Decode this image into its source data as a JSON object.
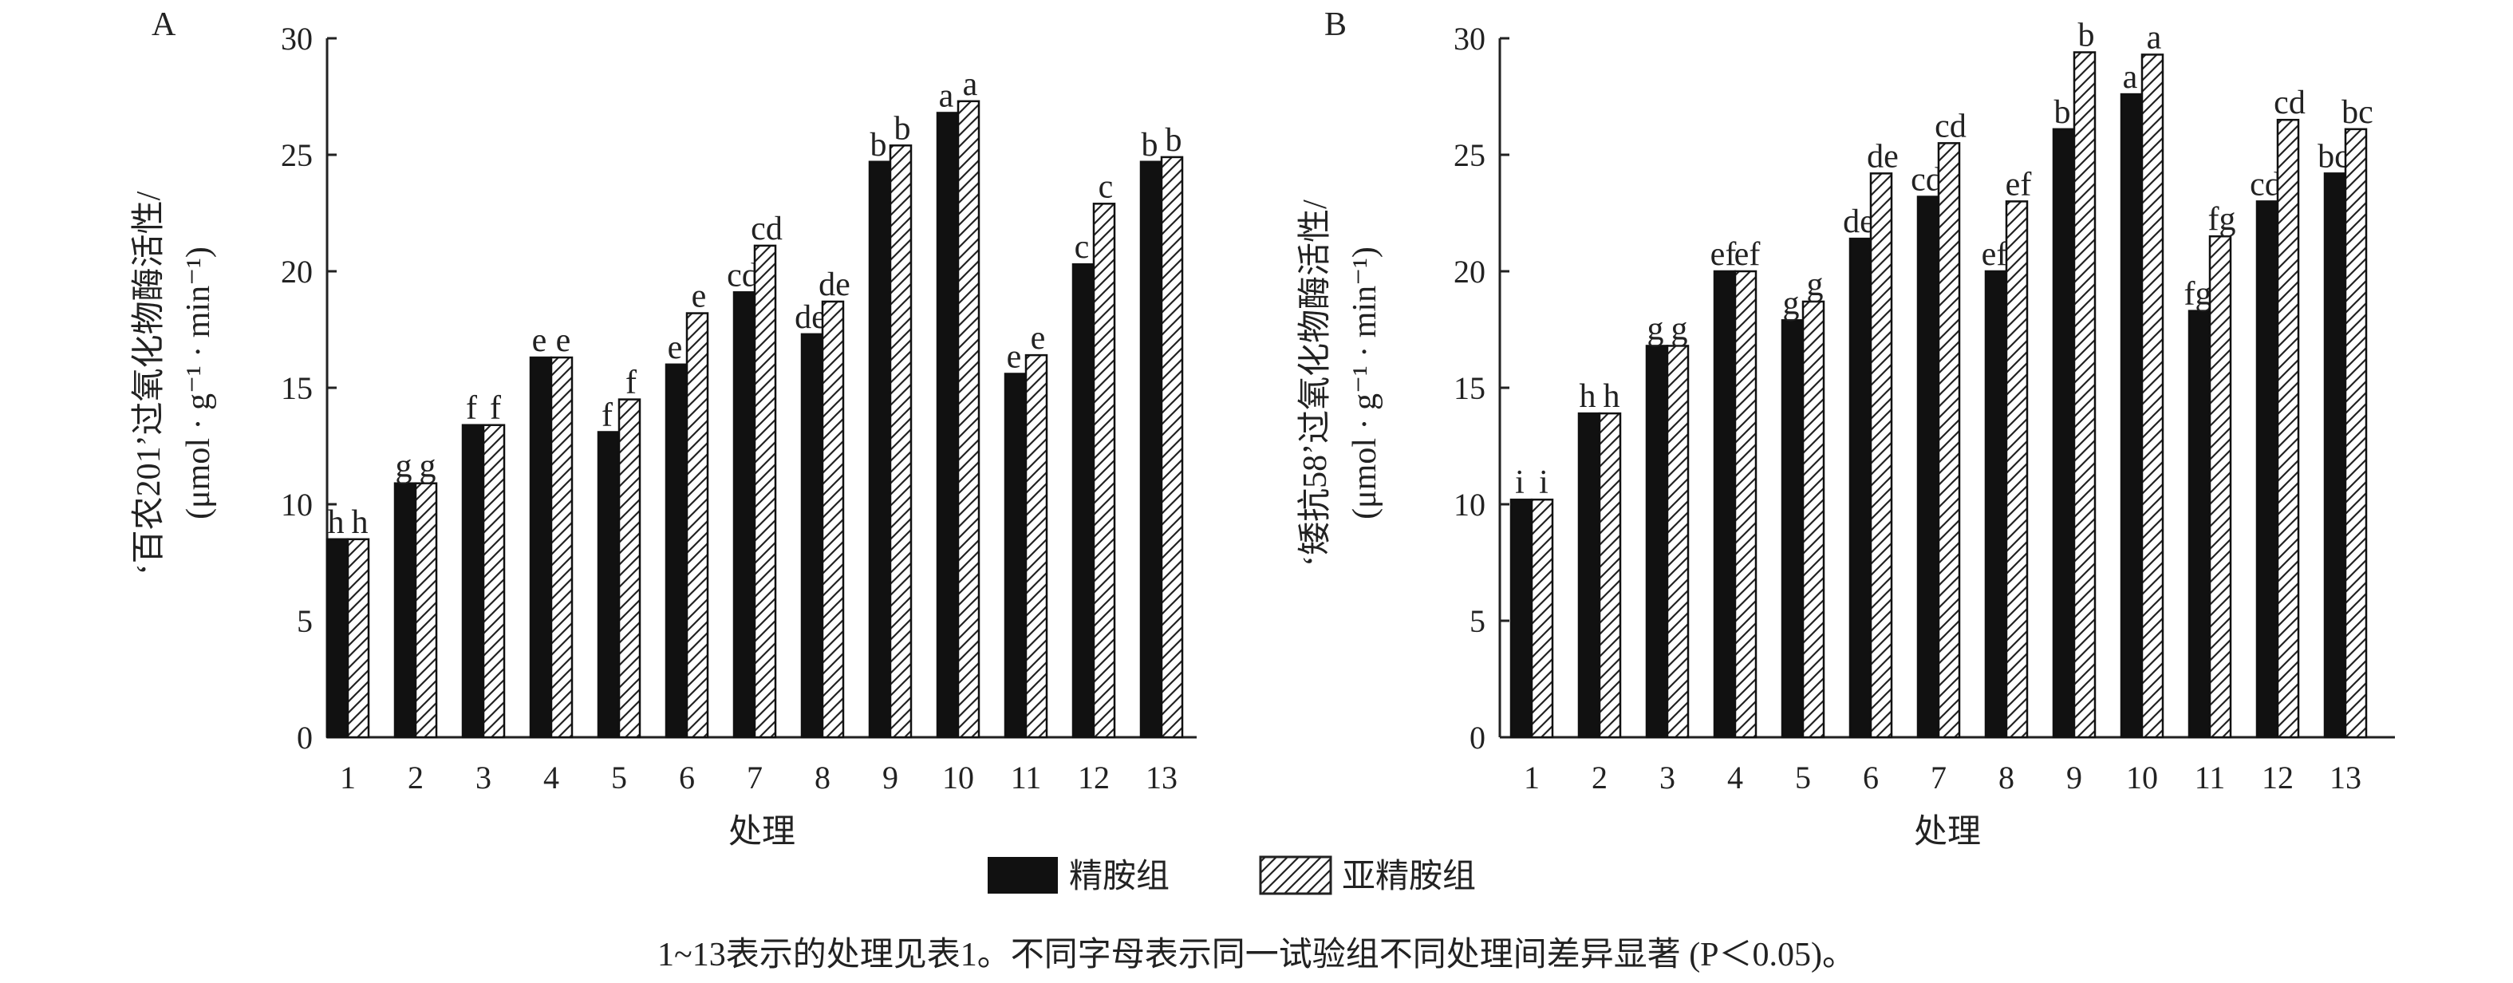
{
  "legend": {
    "solid": "精胺组",
    "hatched": "亚精胺组"
  },
  "caption": "1~13表示的处理见表1。不同字母表示同一试验组不同处理间差异显著 (P＜0.05)。",
  "colors": {
    "solid": "#111111",
    "axis": "#222222"
  },
  "chart_data": [
    {
      "type": "bar",
      "panel": "A",
      "xlabel": "处理",
      "ylabel": "‘百农201’过氧化物酶活性/",
      "ylabel_unit": "(μmol · g⁻¹ · min⁻¹)",
      "ylim": [
        0,
        30
      ],
      "yticks": [
        "0",
        "5",
        "10",
        "15",
        "20",
        "25",
        "30"
      ],
      "categories": [
        "1",
        "2",
        "3",
        "4",
        "5",
        "6",
        "7",
        "8",
        "9",
        "10",
        "11",
        "12",
        "13"
      ],
      "series": [
        {
          "name": "精胺组",
          "values": [
            8.5,
            10.9,
            13.4,
            16.3,
            13.1,
            16.0,
            19.1,
            17.3,
            24.7,
            26.8,
            15.6,
            20.3,
            24.7
          ],
          "letters": [
            "h",
            "g",
            "f",
            "e",
            "f",
            "e",
            "cd",
            "de",
            "b",
            "a",
            "e",
            "c",
            "b"
          ]
        },
        {
          "name": "亚精胺组",
          "values": [
            8.5,
            10.9,
            13.4,
            16.3,
            14.5,
            18.2,
            21.1,
            18.7,
            25.4,
            27.3,
            16.4,
            22.9,
            24.9
          ],
          "letters": [
            "h",
            "g",
            "f",
            "e",
            "f",
            "e",
            "cd",
            "de",
            "b",
            "a",
            "e",
            "c",
            "b"
          ]
        }
      ]
    },
    {
      "type": "bar",
      "panel": "B",
      "xlabel": "处理",
      "ylabel": "‘矮抗58’过氧化物酶活性/",
      "ylabel_unit": "(μmol · g⁻¹ · min⁻¹)",
      "ylim": [
        0,
        30
      ],
      "yticks": [
        "0",
        "5",
        "10",
        "15",
        "20",
        "25",
        "30"
      ],
      "categories": [
        "1",
        "2",
        "3",
        "4",
        "5",
        "6",
        "7",
        "8",
        "9",
        "10",
        "11",
        "12",
        "13"
      ],
      "series": [
        {
          "name": "精胺组",
          "values": [
            10.2,
            13.9,
            16.8,
            20.0,
            17.9,
            21.4,
            23.2,
            20.0,
            26.1,
            27.6,
            18.3,
            23.0,
            24.2
          ],
          "letters": [
            "i",
            "h",
            "g",
            "ef",
            "g",
            "de",
            "cd",
            "ef",
            "b",
            "a",
            "fg",
            "cd",
            "bc"
          ]
        },
        {
          "name": "亚精胺组",
          "values": [
            10.2,
            13.9,
            16.8,
            20.0,
            18.7,
            24.2,
            25.5,
            23.0,
            29.4,
            29.3,
            21.5,
            26.5,
            26.1
          ],
          "letters": [
            "i",
            "h",
            "g",
            "ef",
            "g",
            "de",
            "cd",
            "ef",
            "b",
            "a",
            "fg",
            "cd",
            "bc"
          ]
        }
      ]
    }
  ]
}
